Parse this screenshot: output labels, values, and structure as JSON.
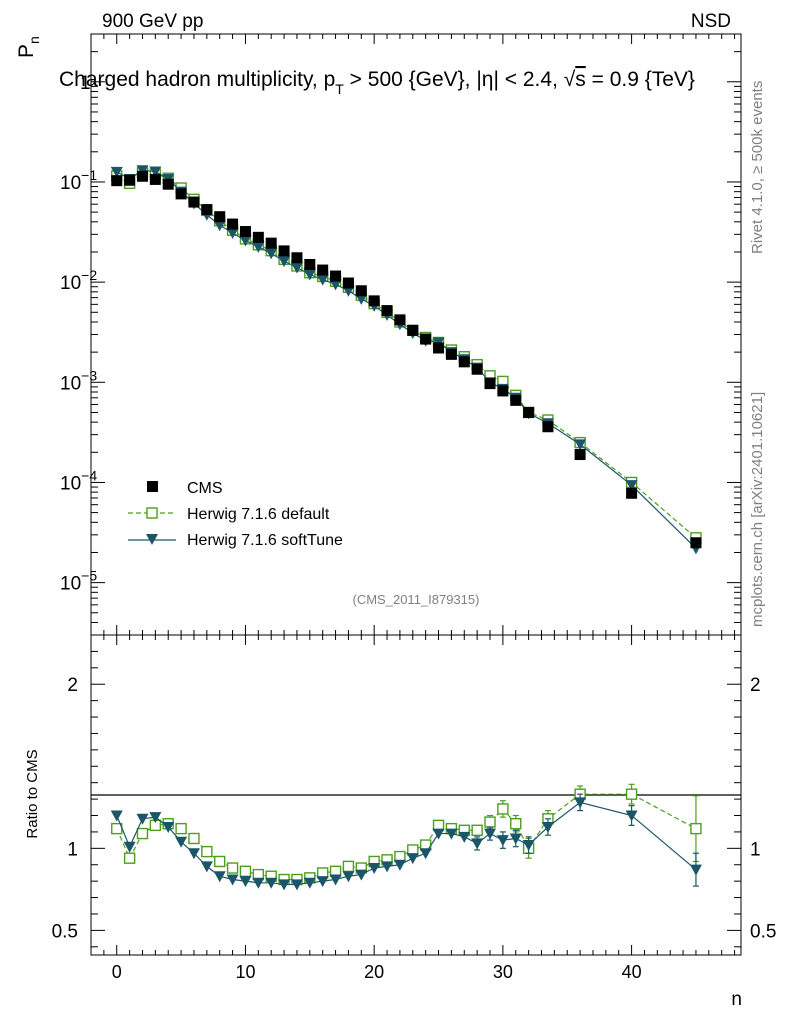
{
  "header": {
    "left": "900 GeV pp",
    "right": "NSD"
  },
  "side_labels": {
    "rivet": "Rivet 4.1.0, ≥ 500k events",
    "mcplots": "mcplots.cern.ch [arXiv:2401.10621]"
  },
  "analysis_tag": "(CMS_2011_I879315)",
  "chart_data": [
    {
      "type": "scatter",
      "title": "Charged hadron multiplicity, p_T > 500 {GeV}, |η| < 2.4, √s = 0.9 {TeV}",
      "title_parts": {
        "pre": "Charged hadron multiplicity, p",
        "sub": "T",
        "mid": " > 500 {GeV}, |η| < 2.4, √",
        "s": "s",
        "post": " = 0.9 {TeV}"
      },
      "ylabel": "P",
      "ylabel_sub": "n",
      "yscale": "log",
      "ylim": [
        3e-06,
        3
      ],
      "xlim": [
        -2,
        48.5
      ],
      "yticks": [
        {
          "value": 1,
          "label": "1",
          "exp": ""
        },
        {
          "value": 0.1,
          "label": "10",
          "exp": "−1"
        },
        {
          "value": 0.01,
          "label": "10",
          "exp": "−2"
        },
        {
          "value": 0.001,
          "label": "10",
          "exp": "−3"
        },
        {
          "value": 0.0001,
          "label": "10",
          "exp": "−4"
        },
        {
          "value": 1e-05,
          "label": "10",
          "exp": "−5"
        }
      ],
      "legend": [
        "CMS",
        "Herwig 7.1.6 default",
        "Herwig 7.1.6 softTune"
      ],
      "legend_position": "bottom-left",
      "x": [
        0,
        1,
        2,
        3,
        4,
        5,
        6,
        7,
        8,
        9,
        10,
        11,
        12,
        13,
        14,
        15,
        16,
        17,
        18,
        19,
        20,
        21,
        22,
        23,
        24,
        25,
        26,
        27,
        28,
        29,
        30,
        31,
        32,
        33.5,
        36,
        40,
        45
      ],
      "series": [
        {
          "name": "CMS",
          "color": "#000000",
          "marker": "filled-square",
          "values": [
            0.103,
            0.104,
            0.114,
            0.106,
            0.095,
            0.076,
            0.063,
            0.053,
            0.045,
            0.038,
            0.032,
            0.028,
            0.0245,
            0.0205,
            0.0175,
            0.015,
            0.0132,
            0.0115,
            0.0098,
            0.0082,
            0.0065,
            0.0052,
            0.0042,
            0.0033,
            0.0027,
            0.0022,
            0.0019,
            0.0016,
            0.00135,
            0.00097,
            0.00082,
            0.00066,
            0.0005,
            0.00036,
            0.00019,
            7.8e-05,
            2.5e-05
          ]
        },
        {
          "name": "Herwig 7.1.6 default",
          "color": "#4d9e1e",
          "marker": "open-square",
          "dash": "dashed",
          "values": [
            0.115,
            0.097,
            0.123,
            0.12,
            0.109,
            0.087,
            0.067,
            0.052,
            0.041,
            0.033,
            0.027,
            0.0236,
            0.0206,
            0.0169,
            0.0145,
            0.0124,
            0.0114,
            0.0102,
            0.0089,
            0.0074,
            0.0061,
            0.005,
            0.004,
            0.0033,
            0.0028,
            0.0025,
            0.0021,
            0.0018,
            0.0015,
            0.00116,
            0.00102,
            0.00074,
            0.0005,
            0.00042,
            0.00025,
            0.0001,
            2.8e-05
          ]
        },
        {
          "name": "Herwig 7.1.6 softTune",
          "color": "#1b5668",
          "marker": "filled-triangle-down",
          "dash": "solid",
          "values": [
            0.126,
            0.107,
            0.131,
            0.127,
            0.107,
            0.08,
            0.061,
            0.047,
            0.037,
            0.031,
            0.026,
            0.0225,
            0.0194,
            0.0162,
            0.014,
            0.0119,
            0.0106,
            0.0095,
            0.0082,
            0.0068,
            0.0058,
            0.0047,
            0.0038,
            0.0031,
            0.0026,
            0.0025,
            0.002,
            0.0017,
            0.0014,
            0.001,
            0.00086,
            0.0007,
            0.00049,
            0.00039,
            0.00024,
            9.4e-05,
            2.2e-05
          ]
        }
      ]
    },
    {
      "type": "scatter",
      "ylabel": "Ratio to CMS",
      "xlabel": "n",
      "ylim": [
        0.35,
        2.3
      ],
      "xlim": [
        -2,
        48.5
      ],
      "yticks": [
        0.5,
        1,
        2
      ],
      "ytick_labels": [
        "0.5",
        "1",
        "2"
      ],
      "xticks": [
        0,
        10,
        20,
        30,
        40
      ],
      "xtick_labels": [
        "0",
        "10",
        "20",
        "30",
        "40"
      ],
      "reference_line": 1,
      "x": [
        0,
        1,
        2,
        3,
        4,
        5,
        6,
        7,
        8,
        9,
        10,
        11,
        12,
        13,
        14,
        15,
        16,
        17,
        18,
        19,
        20,
        21,
        22,
        23,
        24,
        25,
        26,
        27,
        28,
        29,
        30,
        31,
        32,
        33.5,
        36,
        40,
        45
      ],
      "series": [
        {
          "name": "Herwig 7.1.6 default",
          "color": "#4d9e1e",
          "marker": "open-square",
          "dash": "dashed",
          "values": [
            1.12,
            0.94,
            1.09,
            1.14,
            1.15,
            1.12,
            1.06,
            0.98,
            0.92,
            0.88,
            0.86,
            0.84,
            0.83,
            0.81,
            0.81,
            0.82,
            0.85,
            0.86,
            0.89,
            0.88,
            0.92,
            0.93,
            0.95,
            0.99,
            1.02,
            1.14,
            1.12,
            1.11,
            1.11,
            1.16,
            1.24,
            1.15,
            1.0,
            1.18,
            1.33,
            1.33,
            1.12
          ],
          "errors": [
            0,
            0,
            0,
            0,
            0,
            0,
            0,
            0,
            0,
            0,
            0,
            0,
            0,
            0,
            0,
            0,
            0,
            0,
            0,
            0,
            0,
            0,
            0,
            0,
            0,
            0,
            0,
            0,
            0,
            0.04,
            0.05,
            0.05,
            0.06,
            0.05,
            0.05,
            0.06,
            0.2
          ]
        },
        {
          "name": "Herwig 7.1.6 softTune",
          "color": "#1b5668",
          "marker": "filled-triangle-down",
          "dash": "solid",
          "values": [
            1.2,
            1.01,
            1.18,
            1.19,
            1.13,
            1.04,
            0.97,
            0.89,
            0.83,
            0.81,
            0.8,
            0.79,
            0.79,
            0.78,
            0.78,
            0.79,
            0.8,
            0.81,
            0.83,
            0.84,
            0.88,
            0.89,
            0.9,
            0.94,
            0.97,
            1.09,
            1.09,
            1.07,
            1.03,
            1.09,
            1.05,
            1.06,
            1.02,
            1.13,
            1.28,
            1.2,
            0.87
          ],
          "errors": [
            0,
            0,
            0,
            0,
            0,
            0,
            0,
            0,
            0,
            0,
            0,
            0,
            0,
            0,
            0,
            0,
            0,
            0,
            0,
            0,
            0,
            0,
            0,
            0,
            0,
            0,
            0,
            0,
            0.04,
            0.04,
            0.05,
            0.05,
            0.05,
            0.05,
            0.05,
            0.06,
            0.1
          ]
        }
      ]
    }
  ]
}
